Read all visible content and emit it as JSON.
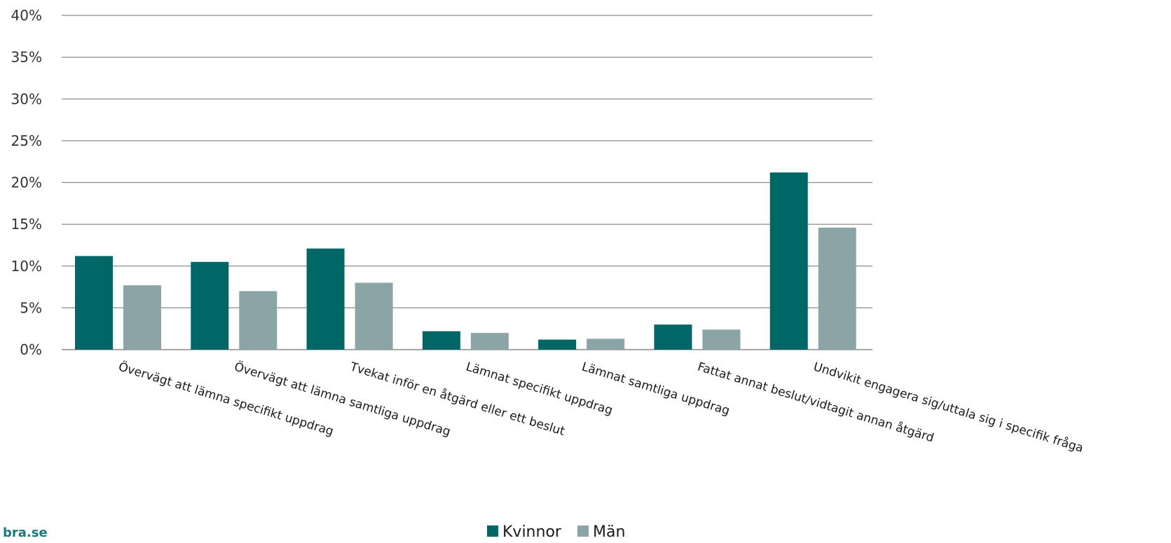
{
  "chart_data": {
    "type": "bar",
    "categories": [
      "Övervägt att lämna specifikt uppdrag",
      "Övervägt att lämna samtliga uppdrag",
      "Tvekat inför en åtgärd eller ett beslut",
      "Lämnat specifikt uppdrag",
      "Lämnat samtliga uppdrag",
      "Fattat annat beslut/vidtagit annan åtgärd",
      "Undvikit engagera sig/uttala sig i specifik fråga"
    ],
    "series": [
      {
        "name": "Kvinnor",
        "color": "#006666",
        "values": [
          11.2,
          10.5,
          12.1,
          2.2,
          1.2,
          3.0,
          21.2
        ]
      },
      {
        "name": "Män",
        "color": "#8ba5a6",
        "values": [
          7.7,
          7.0,
          8.0,
          2.0,
          1.3,
          2.4,
          14.6
        ]
      }
    ],
    "y_ticks": [
      "0%",
      "5%",
      "10%",
      "15%",
      "20%",
      "25%",
      "30%",
      "35%",
      "40%"
    ],
    "ylim": [
      0,
      40
    ],
    "y_unit": "%",
    "grid": true,
    "legend_position": "bottom-center"
  },
  "footer": {
    "brand": "bra.se",
    "brand_color": "#1a7a7a"
  }
}
